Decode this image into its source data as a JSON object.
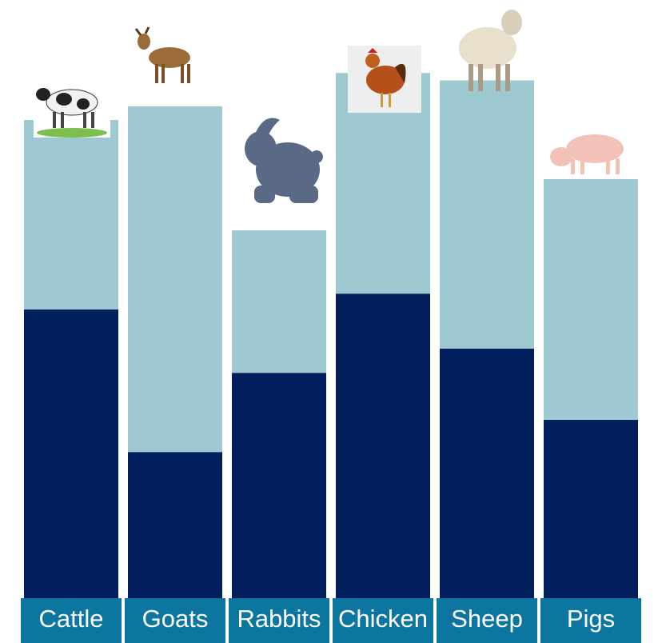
{
  "chart_data": {
    "type": "stacked-bar",
    "categories": [
      "Cattle",
      "Goats",
      "Rabbits",
      "Chicken",
      "Sheep",
      "Pigs"
    ],
    "series": [
      {
        "color": "#001f5c",
        "values": [
          54.7,
          27.7,
          42.7,
          57.7,
          47.3,
          33.8
        ]
      },
      {
        "color": "#9fc9d1",
        "values": [
          35.9,
          65.5,
          27.0,
          41.8,
          50.8,
          45.6
        ]
      }
    ],
    "ylim": [
      0,
      100
    ],
    "label_color": "#0d76a0"
  }
}
